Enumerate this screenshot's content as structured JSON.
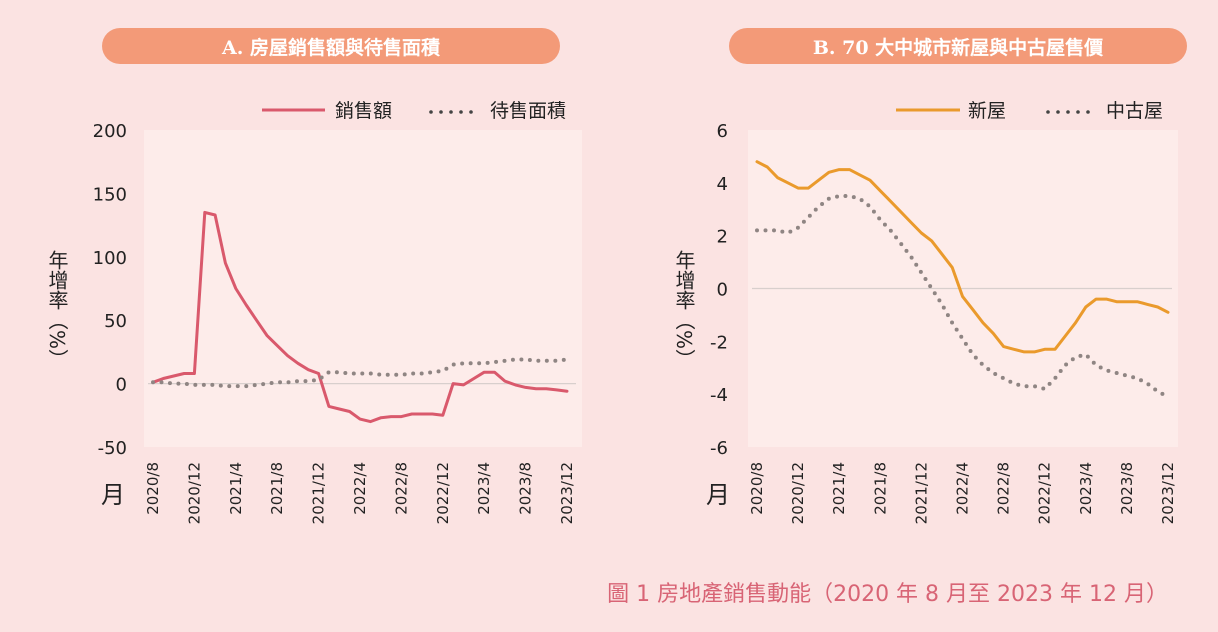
{
  "caption": "圖 1  房地產銷售動能（2020 年 8 月至 2023 年 12 月）",
  "colors": {
    "sales": "#d9596c",
    "pending": "#8f8583",
    "newhouse": "#ea9a2c",
    "used": "#8f8583",
    "plotbg": "#fdecea",
    "bg": "#fbe3e2",
    "pill": "#f39a78"
  },
  "chart_data": [
    {
      "type": "line",
      "title": "A. 房屋銷售額與待售面積",
      "ylabel": "年增率（%）",
      "xlabel": "月",
      "ylim": [
        -50,
        200
      ],
      "yticks": [
        200,
        150,
        100,
        50,
        0,
        -50
      ],
      "xtick_labels": [
        "2020/8",
        "2020/12",
        "2021/4",
        "2021/8",
        "2021/12",
        "2022/4",
        "2022/8",
        "2022/12",
        "2023/4",
        "2023/8",
        "2023/12"
      ],
      "legend": "top-right",
      "series": [
        {
          "name": "銷售額",
          "style": "solid",
          "values": [
            1,
            4,
            6,
            8,
            8,
            135,
            133,
            95,
            75,
            62,
            50,
            38,
            30,
            22,
            16,
            11,
            8,
            -18,
            -20,
            -22,
            -28,
            -30,
            -27,
            -26,
            -26,
            -24,
            -24,
            -24,
            -25,
            0,
            -1,
            4,
            9,
            9,
            2,
            -1,
            -3,
            -4,
            -4,
            -5,
            -6
          ]
        },
        {
          "name": "待售面積",
          "style": "dotted",
          "values": [
            1,
            1,
            0,
            0,
            -1,
            -1,
            -1,
            -2,
            -2,
            -2,
            -1,
            0,
            1,
            1,
            2,
            2,
            3,
            9,
            9,
            8,
            8,
            8,
            7,
            7,
            7,
            8,
            8,
            9,
            10,
            15,
            16,
            16,
            16,
            17,
            18,
            19,
            19,
            18,
            18,
            18,
            19
          ]
        }
      ]
    },
    {
      "type": "line",
      "title": "B. 70 大中城市新屋與中古屋售價",
      "ylabel": "年增率（%）",
      "xlabel": "月",
      "ylim": [
        -6,
        6
      ],
      "yticks": [
        6,
        4,
        2,
        0,
        -2,
        -4,
        -6
      ],
      "xtick_labels": [
        "2020/8",
        "2020/12",
        "2021/4",
        "2021/8",
        "2021/12",
        "2022/4",
        "2022/8",
        "2022/12",
        "2023/4",
        "2023/8",
        "2023/12"
      ],
      "legend": "top-right",
      "series": [
        {
          "name": "新屋",
          "style": "solid",
          "values": [
            4.8,
            4.6,
            4.2,
            4.0,
            3.8,
            3.8,
            4.1,
            4.4,
            4.5,
            4.5,
            4.3,
            4.1,
            3.7,
            3.3,
            2.9,
            2.5,
            2.1,
            1.8,
            1.3,
            0.8,
            -0.3,
            -0.8,
            -1.3,
            -1.7,
            -2.2,
            -2.3,
            -2.4,
            -2.4,
            -2.3,
            -2.3,
            -1.8,
            -1.3,
            -0.7,
            -0.4,
            -0.4,
            -0.5,
            -0.5,
            -0.5,
            -0.6,
            -0.7,
            -0.9
          ]
        },
        {
          "name": "中古屋",
          "style": "dotted",
          "values": [
            2.2,
            2.2,
            2.2,
            2.1,
            2.3,
            2.7,
            3.1,
            3.4,
            3.5,
            3.5,
            3.4,
            3.1,
            2.6,
            2.2,
            1.7,
            1.2,
            0.6,
            0,
            -0.6,
            -1.3,
            -1.9,
            -2.5,
            -2.9,
            -3.2,
            -3.4,
            -3.6,
            -3.7,
            -3.7,
            -3.8,
            -3.4,
            -2.9,
            -2.6,
            -2.5,
            -2.9,
            -3.1,
            -3.2,
            -3.3,
            -3.4,
            -3.6,
            -3.9,
            -4.1
          ]
        }
      ]
    }
  ]
}
